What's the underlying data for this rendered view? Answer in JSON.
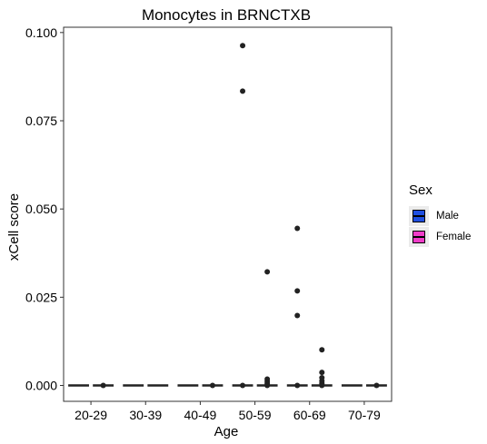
{
  "chart_data": {
    "type": "boxplot",
    "title": "Monocytes in BRNCTXB",
    "xlabel": "Age",
    "ylabel": "xCell score",
    "categories": [
      "20-29",
      "30-39",
      "40-49",
      "50-59",
      "60-69",
      "70-79"
    ],
    "ylim": [
      -0.0045,
      0.1015
    ],
    "yticks": [
      0,
      0.025,
      0.05,
      0.075,
      0.1
    ],
    "ytick_labels": [
      "0.000",
      "0.025",
      "0.050",
      "0.075",
      "0.100"
    ],
    "grid": false,
    "legend": {
      "title": "Sex",
      "placement": "right"
    },
    "series": [
      {
        "name": "Male",
        "color": "#1f4fe0",
        "boxes": [
          {
            "category": "20-29",
            "q1": 0,
            "median": 0,
            "q3": 0,
            "whisker_low": 0,
            "whisker_high": 0,
            "outliers": []
          },
          {
            "category": "30-39",
            "q1": 0,
            "median": 0,
            "q3": 0,
            "whisker_low": 0,
            "whisker_high": 0,
            "outliers": []
          },
          {
            "category": "40-49",
            "q1": 0,
            "median": 0,
            "q3": 0,
            "whisker_low": 0,
            "whisker_high": 0,
            "outliers": []
          },
          {
            "category": "50-59",
            "q1": 0,
            "median": 0,
            "q3": 0,
            "whisker_low": 0,
            "whisker_high": 0,
            "outliers": [
              0.0963,
              0.0834,
              0.0
            ]
          },
          {
            "category": "60-69",
            "q1": 0,
            "median": 0,
            "q3": 0,
            "whisker_low": 0,
            "whisker_high": 0,
            "outliers": [
              0.0445,
              0.0268,
              0.0198,
              0.0
            ]
          },
          {
            "category": "70-79",
            "q1": 0,
            "median": 0,
            "q3": 0,
            "whisker_low": 0,
            "whisker_high": 0,
            "outliers": []
          }
        ]
      },
      {
        "name": "Female",
        "color": "#f03cc8",
        "boxes": [
          {
            "category": "20-29",
            "q1": 0,
            "median": 0,
            "q3": 0,
            "whisker_low": 0,
            "whisker_high": 0,
            "outliers": [
              0.0
            ]
          },
          {
            "category": "30-39",
            "q1": 0,
            "median": 0,
            "q3": 0,
            "whisker_low": 0,
            "whisker_high": 0,
            "outliers": []
          },
          {
            "category": "40-49",
            "q1": 0,
            "median": 0,
            "q3": 0,
            "whisker_low": 0,
            "whisker_high": 0,
            "outliers": [
              0.0
            ]
          },
          {
            "category": "50-59",
            "q1": 0,
            "median": 0,
            "q3": 0,
            "whisker_low": 0,
            "whisker_high": 0,
            "outliers": [
              0.0322,
              0.0018,
              0.0012,
              0.0006,
              0.0
            ]
          },
          {
            "category": "60-69",
            "q1": 0,
            "median": 0,
            "q3": 0,
            "whisker_low": 0,
            "whisker_high": 0,
            "outliers": [
              0.0101,
              0.0037,
              0.0022,
              0.0013,
              0.0006,
              0.0
            ]
          },
          {
            "category": "70-79",
            "q1": 0,
            "median": 0,
            "q3": 0,
            "whisker_low": 0,
            "whisker_high": 0,
            "outliers": [
              0.0
            ]
          }
        ]
      }
    ]
  }
}
